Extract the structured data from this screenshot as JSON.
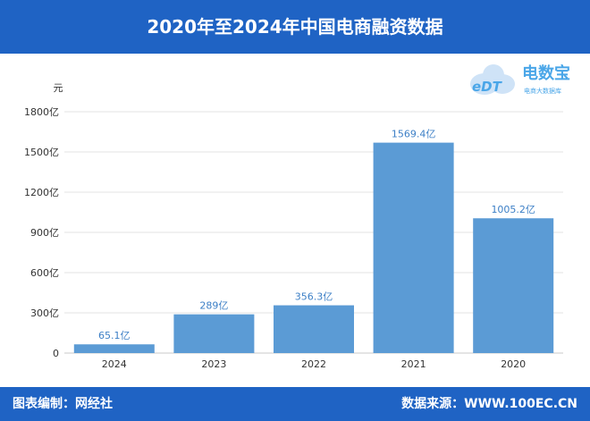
{
  "header": {
    "title": "2020年至2024年中国电商融资数据"
  },
  "footer": {
    "left": "图表编制：网经社",
    "right": "数据来源：WWW.100EC.CN"
  },
  "logo": {
    "brand": "电数宝",
    "badge": "eDT",
    "sub": "电商大数据库"
  },
  "colors": {
    "header_bg": "#1f63c4",
    "bar": "#5b9bd5",
    "label": "#3c7fc6",
    "grid": "#e3e3e3"
  },
  "chart_data": {
    "type": "bar",
    "categories": [
      "2024",
      "2023",
      "2022",
      "2021",
      "2020"
    ],
    "values": [
      65.1,
      289,
      356.3,
      1569.4,
      1005.2
    ],
    "data_labels": [
      "65.1亿",
      "289亿",
      "356.3亿",
      "1569.4亿",
      "1005.2亿"
    ],
    "yticks": [
      "0",
      "300亿",
      "600亿",
      "900亿",
      "1200亿",
      "1500亿",
      "1800亿"
    ],
    "ytick_values": [
      0,
      300,
      600,
      900,
      1200,
      1500,
      1800
    ],
    "ylabel": "元",
    "ylim": [
      0,
      1800
    ],
    "grid": true
  }
}
